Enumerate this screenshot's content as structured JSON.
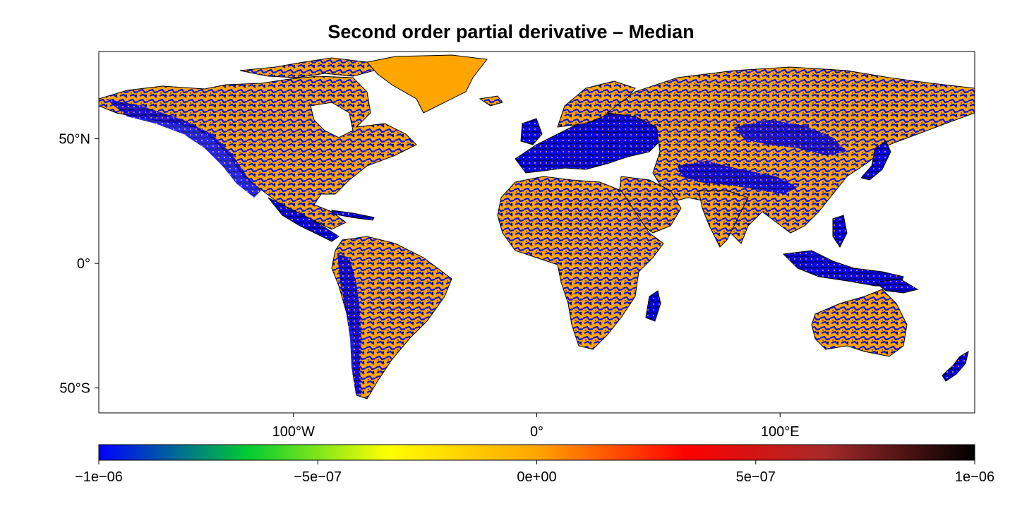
{
  "title": "Second order partial derivative – Median",
  "map": {
    "type": "world raster map",
    "projection": "equirectangular",
    "lon_range": [
      -180,
      180
    ],
    "lat_range": [
      -60,
      85
    ],
    "y_ticks": [
      {
        "lat": 50,
        "label": "50°N"
      },
      {
        "lat": 0,
        "label": "0°"
      },
      {
        "lat": -50,
        "label": "50°S"
      }
    ],
    "x_ticks": [
      {
        "lon": -100,
        "label": "100°W"
      },
      {
        "lon": 0,
        "label": "0°"
      },
      {
        "lon": 100,
        "label": "100°E"
      }
    ],
    "land_colors": {
      "dominant_positive_small": "#ffa500",
      "dominant_negative": "#0000ff",
      "high_positive": "#000000"
    }
  },
  "colorbar": {
    "min": -1e-06,
    "max": 1e-06,
    "tick_labels": [
      "−1e−06",
      "−5e−07",
      "0e+00",
      "5e−07",
      "1e−06"
    ],
    "tick_values": [
      -1e-06,
      -5e-07,
      0,
      5e-07,
      1e-06
    ],
    "color_stops": [
      "#0000ff",
      "#00ff00",
      "#ffff00",
      "#ffa500",
      "#ff0000",
      "#a52a2a",
      "#000000"
    ]
  }
}
